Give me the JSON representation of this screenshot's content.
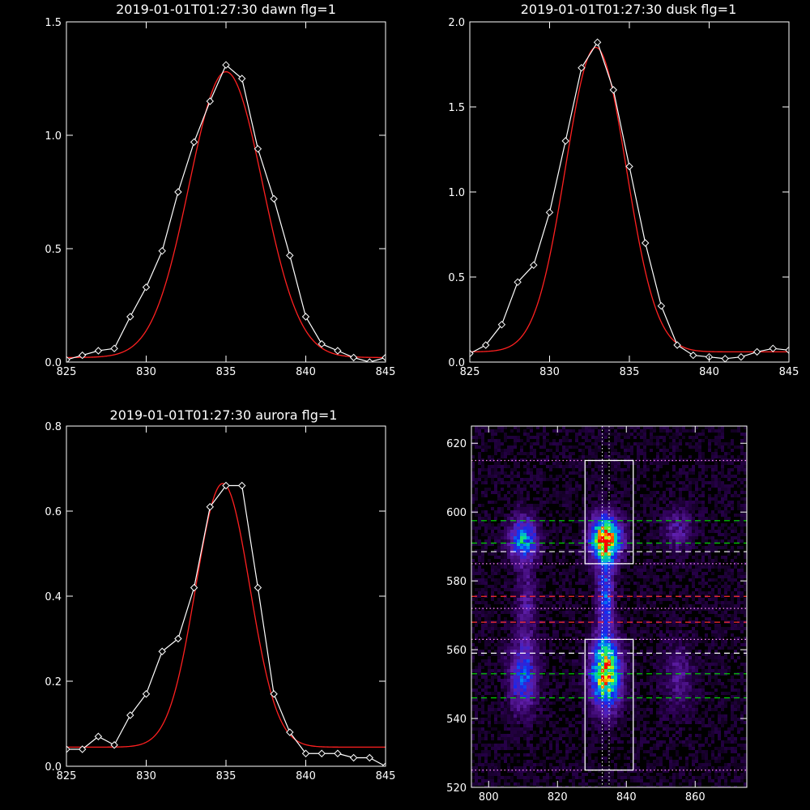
{
  "colors": {
    "background": "#000000",
    "axes": "#ffffff",
    "data_line": "#ffffff",
    "fit_line": "#ff2020",
    "green_dash": "#00e000",
    "red_dash": "#ff3030",
    "box": "#ffffff"
  },
  "chart_data": [
    {
      "type": "line",
      "title": "2019-01-01T01:27:30 dawn flg=1",
      "xlim": [
        825,
        845
      ],
      "ylim": [
        0,
        1.5
      ],
      "xticks": [
        825,
        830,
        835,
        840,
        845
      ],
      "yticks": [
        0.0,
        0.5,
        1.0,
        1.5
      ],
      "xtick_labels": [
        "825",
        "830",
        "835",
        "840",
        "845"
      ],
      "ytick_labels": [
        "0.0",
        "0.5",
        "1.0",
        "1.5"
      ],
      "series": [
        {
          "kind": "data",
          "markers": "diamond",
          "x": [
            825,
            826,
            827,
            828,
            829,
            830,
            831,
            832,
            833,
            834,
            835,
            836,
            837,
            838,
            839,
            840,
            841,
            842,
            843,
            844,
            845
          ],
          "y": [
            0.01,
            0.03,
            0.05,
            0.06,
            0.2,
            0.33,
            0.49,
            0.75,
            0.97,
            1.15,
            1.31,
            1.25,
            0.94,
            0.72,
            0.47,
            0.2,
            0.08,
            0.05,
            0.02,
            0.0,
            0.02
          ]
        },
        {
          "kind": "fit",
          "gaussian": {
            "amp": 1.26,
            "center": 835.0,
            "sigma": 2.3,
            "base": 0.02
          }
        }
      ]
    },
    {
      "type": "line",
      "title": "2019-01-01T01:27:30 dusk flg=1",
      "xlim": [
        825,
        845
      ],
      "ylim": [
        0,
        2.0
      ],
      "xticks": [
        825,
        830,
        835,
        840,
        845
      ],
      "yticks": [
        0.0,
        0.5,
        1.0,
        1.5,
        2.0
      ],
      "xtick_labels": [
        "825",
        "830",
        "835",
        "840",
        "845"
      ],
      "ytick_labels": [
        "0.0",
        "0.5",
        "1.0",
        "1.5",
        "2.0"
      ],
      "series": [
        {
          "kind": "data",
          "markers": "diamond",
          "x": [
            825,
            826,
            827,
            828,
            829,
            830,
            831,
            832,
            833,
            834,
            835,
            836,
            837,
            838,
            839,
            840,
            841,
            842,
            843,
            844,
            845
          ],
          "y": [
            0.05,
            0.1,
            0.22,
            0.47,
            0.57,
            0.88,
            1.3,
            1.73,
            1.88,
            1.6,
            1.15,
            0.7,
            0.33,
            0.1,
            0.04,
            0.03,
            0.02,
            0.03,
            0.06,
            0.08,
            0.07
          ]
        },
        {
          "kind": "fit",
          "gaussian": {
            "amp": 1.79,
            "center": 832.9,
            "sigma": 1.9,
            "base": 0.06
          }
        }
      ]
    },
    {
      "type": "line",
      "title": "2019-01-01T01:27:30 aurora flg=1",
      "xlim": [
        825,
        845
      ],
      "ylim": [
        0,
        0.8
      ],
      "xticks": [
        825,
        830,
        835,
        840,
        845
      ],
      "yticks": [
        0.0,
        0.2,
        0.4,
        0.6,
        0.8
      ],
      "xtick_labels": [
        "825",
        "830",
        "835",
        "840",
        "845"
      ],
      "ytick_labels": [
        "0.0",
        "0.2",
        "0.4",
        "0.6",
        "0.8"
      ],
      "series": [
        {
          "kind": "data",
          "markers": "diamond",
          "x": [
            825,
            826,
            827,
            828,
            829,
            830,
            831,
            832,
            833,
            834,
            835,
            836,
            837,
            838,
            839,
            840,
            841,
            842,
            843,
            844,
            845
          ],
          "y": [
            0.04,
            0.04,
            0.07,
            0.05,
            0.12,
            0.17,
            0.27,
            0.3,
            0.42,
            0.61,
            0.66,
            0.66,
            0.42,
            0.17,
            0.08,
            0.03,
            0.03,
            0.03,
            0.02,
            0.02,
            0.0
          ]
        },
        {
          "kind": "fit",
          "gaussian": {
            "amp": 0.62,
            "center": 834.8,
            "sigma": 1.7,
            "base": 0.045
          }
        }
      ]
    },
    {
      "type": "heatmap",
      "xlim": [
        795,
        875
      ],
      "ylim": [
        520,
        625
      ],
      "xticks": [
        800,
        820,
        840,
        860
      ],
      "yticks": [
        520,
        540,
        560,
        580,
        600,
        620
      ],
      "xtick_labels": [
        "800",
        "820",
        "840",
        "860"
      ],
      "ytick_labels": [
        "520",
        "540",
        "560",
        "580",
        "600",
        "620"
      ],
      "blobs": [
        {
          "x": 834,
          "y": 592,
          "sx": 3.0,
          "sy": 4.5,
          "amp": 1.0
        },
        {
          "x": 834,
          "y": 553,
          "sx": 3.0,
          "sy": 7.0,
          "amp": 0.85
        },
        {
          "x": 834,
          "y": 575,
          "sx": 1.6,
          "sy": 8.0,
          "amp": 0.42
        },
        {
          "x": 810,
          "y": 592,
          "sx": 2.8,
          "sy": 4.5,
          "amp": 0.55
        },
        {
          "x": 810,
          "y": 552,
          "sx": 2.8,
          "sy": 7.0,
          "amp": 0.42
        },
        {
          "x": 811,
          "y": 573,
          "sx": 2.0,
          "sy": 7.0,
          "amp": 0.22
        },
        {
          "x": 855,
          "y": 595,
          "sx": 2.8,
          "sy": 4.5,
          "amp": 0.22
        },
        {
          "x": 855,
          "y": 552,
          "sx": 3.0,
          "sy": 7.0,
          "amp": 0.18
        }
      ],
      "boxes": [
        {
          "x0": 828,
          "x1": 842,
          "y0": 585,
          "y1": 615
        },
        {
          "x0": 828,
          "x1": 842,
          "y0": 525,
          "y1": 563
        }
      ],
      "hlines": [
        {
          "y": 615,
          "style": "dotted",
          "color": "#ff88ff"
        },
        {
          "y": 585,
          "style": "dotted",
          "color": "#ff88ff"
        },
        {
          "y": 563,
          "style": "dotted",
          "color": "#ff88ff"
        },
        {
          "y": 525,
          "style": "dotted",
          "color": "#ff88ff"
        },
        {
          "y": 572,
          "style": "dotted",
          "color": "#ff88ff"
        },
        {
          "y": 597.5,
          "style": "dashed",
          "color": "#00e000"
        },
        {
          "y": 591,
          "style": "dashed",
          "color": "#00e000"
        },
        {
          "y": 588.5,
          "style": "dashed",
          "color": "#ffffff"
        },
        {
          "y": 575.5,
          "style": "dashed",
          "color": "#ff3030"
        },
        {
          "y": 568,
          "style": "dashed",
          "color": "#ff3030"
        },
        {
          "y": 559,
          "style": "dashed",
          "color": "#ffffff"
        },
        {
          "y": 553,
          "style": "dashed",
          "color": "#00e000"
        },
        {
          "y": 546,
          "style": "dashed",
          "color": "#00e000"
        }
      ],
      "vlines": [
        {
          "x": 833,
          "style": "dotted",
          "color": "#ffffff"
        },
        {
          "x": 835,
          "style": "dotted",
          "color": "#ffffff"
        }
      ]
    }
  ]
}
